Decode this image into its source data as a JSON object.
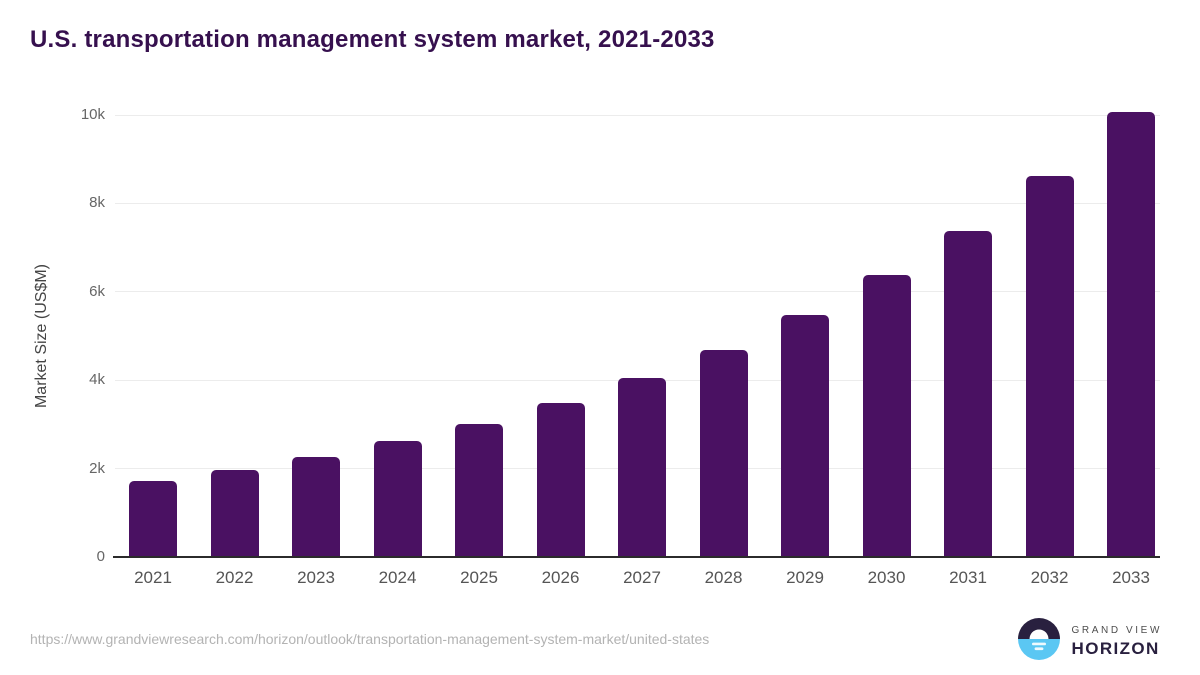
{
  "title": "U.S. transportation management system market, 2021-2033",
  "source_url": "https://www.grandviewresearch.com/horizon/outlook/transportation-management-system-market/united-states",
  "logo": {
    "line1": "GRAND VIEW",
    "line2": "HORIZON",
    "icon": "sun-over-horizon-circle"
  },
  "colors": {
    "bar_color": "#4a1162",
    "title_color": "#36104e",
    "gridline_color": "#ececec",
    "axis_line_color": "#2b2b2b",
    "tick_label_color": "#666666",
    "x_label_color": "#555555",
    "url_color": "#b3b3b3",
    "logo_blue": "#5bc7f3",
    "logo_dark": "#29203f"
  },
  "chart_data": {
    "type": "bar",
    "title": "U.S. transportation management system market, 2021-2033",
    "categories": [
      "2021",
      "2022",
      "2023",
      "2024",
      "2025",
      "2026",
      "2027",
      "2028",
      "2029",
      "2030",
      "2031",
      "2032",
      "2033"
    ],
    "values": [
      1720,
      1960,
      2260,
      2620,
      3000,
      3480,
      4040,
      4690,
      5480,
      6370,
      7380,
      8620,
      10070
    ],
    "xlabel": "",
    "ylabel": "Market Size (US$M)",
    "unit": "US$M",
    "ylim": [
      0,
      10500
    ],
    "yticks": [
      {
        "value": 0,
        "label": "0"
      },
      {
        "value": 2000,
        "label": "2k"
      },
      {
        "value": 4000,
        "label": "4k"
      },
      {
        "value": 6000,
        "label": "6k"
      },
      {
        "value": 8000,
        "label": "8k"
      },
      {
        "value": 10000,
        "label": "10k"
      }
    ],
    "grid": "horizontal",
    "legend": "none"
  }
}
